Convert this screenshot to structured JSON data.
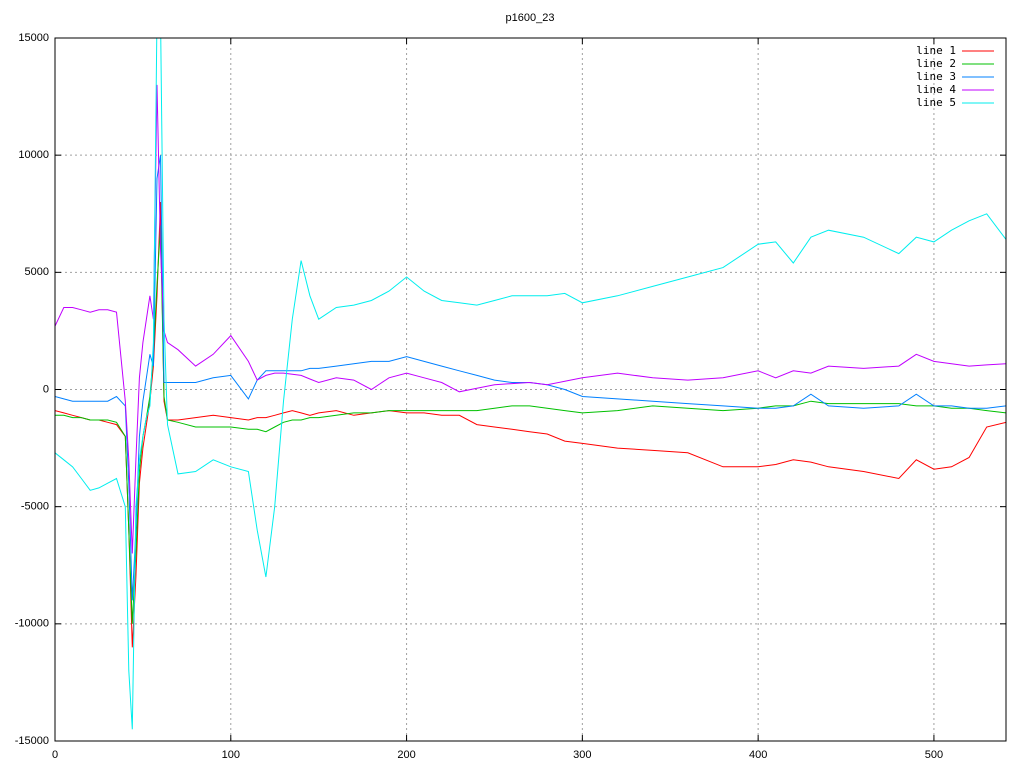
{
  "chart_data": {
    "type": "line",
    "title": "p1600_23",
    "x": [
      0,
      5,
      10,
      15,
      20,
      25,
      30,
      35,
      40,
      42,
      44,
      46,
      48,
      50,
      52,
      54,
      56,
      58,
      60,
      62,
      64,
      70,
      80,
      90,
      100,
      110,
      115,
      120,
      125,
      130,
      135,
      140,
      145,
      150,
      160,
      170,
      180,
      190,
      200,
      210,
      220,
      230,
      240,
      250,
      260,
      270,
      280,
      290,
      300,
      320,
      340,
      360,
      380,
      400,
      410,
      420,
      430,
      440,
      460,
      480,
      490,
      500,
      510,
      520,
      530,
      541
    ],
    "series": [
      {
        "name": "line 1",
        "color": "#ff0000",
        "values": [
          -900,
          -1000,
          -1100,
          -1200,
          -1300,
          -1300,
          -1400,
          -1500,
          -2000,
          -6000,
          -11000,
          -8000,
          -4000,
          -2500,
          -1500,
          -500,
          1000,
          4000,
          8000,
          -500,
          -1300,
          -1300,
          -1200,
          -1100,
          -1200,
          -1300,
          -1200,
          -1200,
          -1100,
          -1000,
          -900,
          -1000,
          -1100,
          -1000,
          -900,
          -1100,
          -1000,
          -900,
          -1000,
          -1000,
          -1100,
          -1100,
          -1500,
          -1600,
          -1700,
          -1800,
          -1900,
          -2200,
          -2300,
          -2500,
          -2600,
          -2700,
          -3300,
          -3300,
          -3200,
          -3000,
          -3100,
          -3300,
          -3500,
          -3800,
          -3000,
          -3400,
          -3300,
          -2900,
          -1600,
          -1400
        ]
      },
      {
        "name": "line 2",
        "color": "#00c000",
        "values": [
          -1100,
          -1100,
          -1200,
          -1200,
          -1300,
          -1300,
          -1300,
          -1400,
          -2000,
          -6000,
          -10000,
          -7000,
          -3500,
          -2000,
          -1200,
          -300,
          1500,
          4500,
          7000,
          -300,
          -1300,
          -1400,
          -1600,
          -1600,
          -1600,
          -1700,
          -1700,
          -1800,
          -1600,
          -1400,
          -1300,
          -1300,
          -1200,
          -1200,
          -1100,
          -1000,
          -1000,
          -900,
          -900,
          -900,
          -900,
          -900,
          -900,
          -800,
          -700,
          -700,
          -800,
          -900,
          -1000,
          -900,
          -700,
          -800,
          -900,
          -800,
          -700,
          -700,
          -500,
          -600,
          -600,
          -600,
          -700,
          -700,
          -800,
          -800,
          -900,
          -1000
        ]
      },
      {
        "name": "line 3",
        "color": "#0080ff",
        "values": [
          -300,
          -400,
          -500,
          -500,
          -500,
          -500,
          -500,
          -300,
          -700,
          -4000,
          -9000,
          -6000,
          -2000,
          -500,
          500,
          1500,
          1000,
          9000,
          10000,
          300,
          300,
          300,
          300,
          500,
          600,
          -400,
          400,
          800,
          800,
          800,
          800,
          800,
          900,
          900,
          1000,
          1100,
          1200,
          1200,
          1400,
          1200,
          1000,
          800,
          600,
          400,
          300,
          300,
          200,
          0,
          -300,
          -400,
          -500,
          -600,
          -700,
          -800,
          -800,
          -700,
          -200,
          -700,
          -800,
          -700,
          -200,
          -700,
          -700,
          -800,
          -800,
          -700
        ]
      },
      {
        "name": "line 4",
        "color": "#c000ff",
        "values": [
          2700,
          3500,
          3500,
          3400,
          3300,
          3400,
          3400,
          3300,
          -500,
          -3000,
          -7000,
          -3000,
          500,
          2000,
          3000,
          4000,
          3000,
          13000,
          6000,
          2500,
          2000,
          1700,
          1000,
          1500,
          2300,
          1200,
          400,
          600,
          700,
          700,
          650,
          600,
          450,
          300,
          500,
          400,
          0,
          500,
          700,
          500,
          300,
          -100,
          50,
          200,
          250,
          300,
          200,
          350,
          500,
          700,
          500,
          400,
          500,
          800,
          500,
          800,
          700,
          1000,
          900,
          1000,
          1500,
          1200,
          1100,
          1000,
          1050,
          1100
        ]
      },
      {
        "name": "line 5",
        "color": "#00eeee",
        "values": [
          -2700,
          -3000,
          -3300,
          -3800,
          -4300,
          -4200,
          -4000,
          -3800,
          -5000,
          -12000,
          -14500,
          -5000,
          -3000,
          -2000,
          -1200,
          -700,
          2000,
          16000,
          16000,
          3000,
          -1500,
          -3600,
          -3500,
          -3000,
          -3300,
          -3500,
          -6000,
          -8000,
          -5000,
          -500,
          3000,
          5500,
          4000,
          3000,
          3500,
          3600,
          3800,
          4200,
          4800,
          4200,
          3800,
          3700,
          3600,
          3800,
          4000,
          4000,
          4000,
          4100,
          3700,
          4000,
          4400,
          4800,
          5200,
          6200,
          6300,
          5400,
          6500,
          6800,
          6500,
          5800,
          6500,
          6300,
          6800,
          7200,
          7500,
          6400
        ]
      }
    ],
    "xlim": [
      0,
      541
    ],
    "ylim": [
      -15000,
      15000
    ],
    "xticks": [
      0,
      100,
      200,
      300,
      400,
      500
    ],
    "yticks": [
      -15000,
      -10000,
      -5000,
      0,
      5000,
      10000,
      15000
    ],
    "grid": true,
    "legend": "top-right"
  }
}
